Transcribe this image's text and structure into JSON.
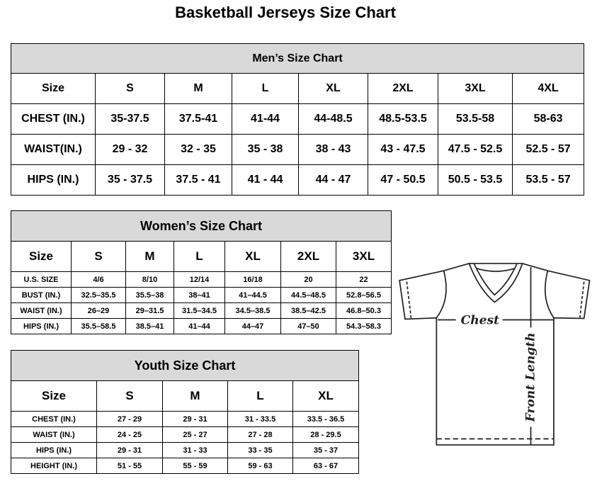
{
  "title": "Basketball Jerseys Size Chart",
  "men": {
    "title": "Men’s Size Chart",
    "sizes": [
      "Size",
      "S",
      "M",
      "L",
      "XL",
      "2XL",
      "3XL",
      "4XL"
    ],
    "rows": [
      [
        "CHEST (IN.)",
        "35-37.5",
        "37.5-41",
        "41-44",
        "44-48.5",
        "48.5-53.5",
        "53.5-58",
        "58-63"
      ],
      [
        "WAIST(IN.)",
        "29 - 32",
        "32 - 35",
        "35 - 38",
        "38 - 43",
        "43 - 47.5",
        "47.5 - 52.5",
        "52.5 - 57"
      ],
      [
        "HIPS (IN.)",
        "35 - 37.5",
        "37.5 - 41",
        "41 - 44",
        "44 - 47",
        "47 - 50.5",
        "50.5 - 53.5",
        "53.5 - 57"
      ]
    ]
  },
  "women": {
    "title": "Women’s Size Chart",
    "sizes": [
      "Size",
      "S",
      "M",
      "L",
      "XL",
      "2XL",
      "3XL"
    ],
    "rows": [
      [
        "U.S. SIZE",
        "4/6",
        "8/10",
        "12/14",
        "16/18",
        "20",
        "22"
      ],
      [
        "BUST (IN.)",
        "32.5–35.5",
        "35.5–38",
        "38–41",
        "41–44.5",
        "44.5–48.5",
        "52.8–56.5"
      ],
      [
        "WAIST (IN.)",
        "26–29",
        "29–31.5",
        "31.5–34.5",
        "34.5–38.5",
        "38.5–42.5",
        "46.8–50.3"
      ],
      [
        "HIPS (IN.)",
        "35.5–58.5",
        "38.5–41",
        "41–44",
        "44–47",
        "47–50",
        "54.3–58.3"
      ]
    ]
  },
  "youth": {
    "title": "Youth Size Chart",
    "sizes": [
      "Size",
      "S",
      "M",
      "L",
      "XL"
    ],
    "rows": [
      [
        "CHEST (IN.)",
        "27 - 29",
        "29 - 31",
        "31 - 33.5",
        "33.5 - 36.5"
      ],
      [
        "WAIST (IN.)",
        "24 - 25",
        "25 - 27",
        "27 - 28",
        "28 - 29.5"
      ],
      [
        "HIPS (IN.)",
        "29 - 31",
        "31 - 33",
        "33 - 35",
        "35 - 37"
      ],
      [
        "HEIGHT (IN.)",
        "51 - 55",
        "55 - 59",
        "59 - 63",
        "63 - 67"
      ]
    ]
  },
  "diagram": {
    "chest_label": "Chest",
    "length_label": "Front Length"
  }
}
